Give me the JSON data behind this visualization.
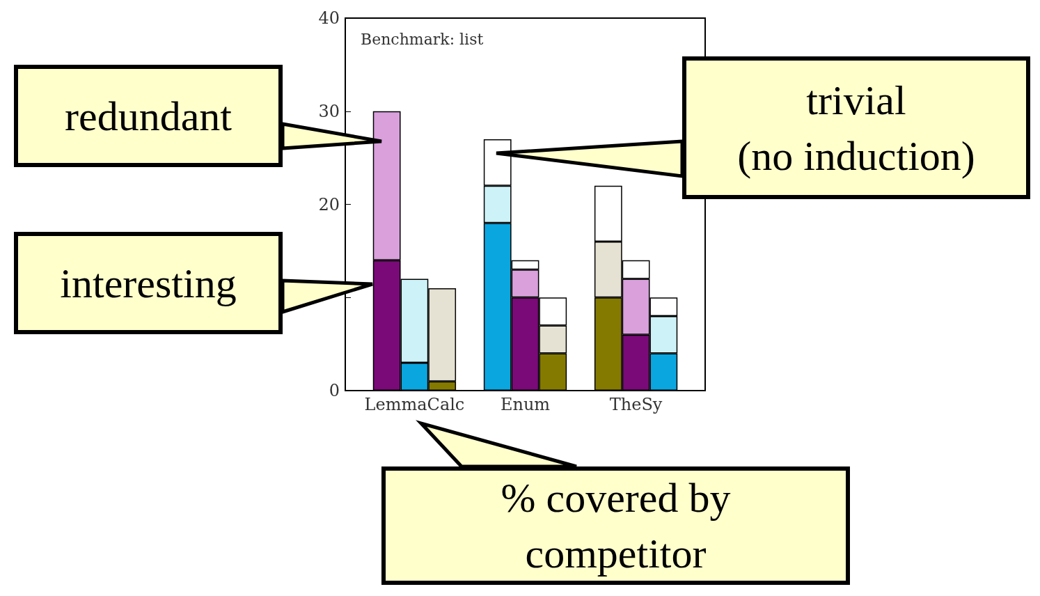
{
  "chart_data": {
    "type": "bar",
    "title": "Benchmark: list",
    "categories": [
      null,
      null,
      "LemmaCalc",
      null,
      null,
      null,
      "Enum",
      null,
      null,
      null,
      "TheSy",
      null,
      null
    ],
    "stacked": true,
    "series": [
      {
        "colors": [
          null,
          "#7a0a78",
          "#0aa6e0",
          "#857a00",
          null,
          "#0aa6e0",
          "#7a0a78",
          "#857a00",
          null,
          "#857a00",
          "#7a0a78",
          "#0aa6e0",
          null
        ],
        "values": [
          null,
          14,
          3,
          1,
          null,
          18,
          10,
          4,
          null,
          10,
          6,
          4,
          null
        ]
      },
      {
        "colors": [
          null,
          "#d9a0dc",
          "#cdf3f8",
          "#e6e2d3",
          null,
          "#cdf3f8",
          "#d9a0dc",
          "#e6e2d3",
          null,
          "#e6e2d3",
          "#d9a0dc",
          "#cdf3f8",
          null
        ],
        "values": [
          null,
          16,
          9,
          10,
          null,
          4,
          3,
          3,
          null,
          6,
          6,
          4,
          null
        ]
      },
      {
        "color": "#ffffff",
        "values": [
          null,
          null,
          null,
          null,
          null,
          5,
          1,
          3,
          null,
          6,
          2,
          2,
          null
        ]
      }
    ],
    "ylim": [
      0,
      40
    ],
    "yticks": [
      0,
      {
        "value": 10,
        "label": null
      },
      20,
      30,
      40
    ],
    "grid": false,
    "annotations": [
      "redundant",
      "interesting",
      "trivial\n(no induction)",
      "% covered by\ncompetitor"
    ]
  }
}
